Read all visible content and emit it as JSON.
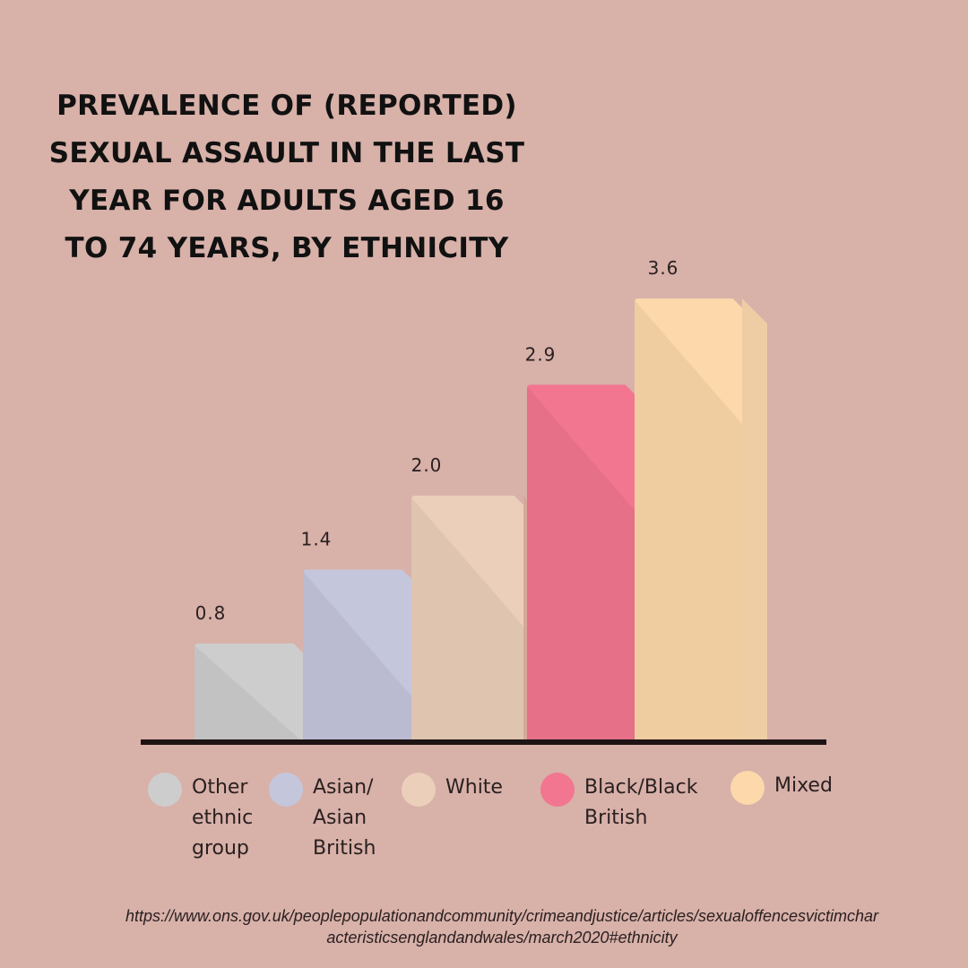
{
  "title_lines": [
    "PREVALENCE OF (REPORTED)",
    "SEXUAL ASSAULT IN THE LAST",
    "YEAR FOR ADULTS AGED 16",
    "TO 74 YEARS, BY ETHNICITY"
  ],
  "chart_data": {
    "type": "bar",
    "title": "PREVALENCE OF (REPORTED) SEXUAL ASSAULT IN THE LAST YEAR FOR ADULTS AGED 16 TO 74 YEARS, BY ETHNICITY",
    "categories": [
      "Other ethnic group",
      "Asian/ Asian British",
      "White",
      "Black/Black British",
      "Mixed"
    ],
    "values": [
      0.8,
      1.4,
      2.0,
      2.9,
      3.6
    ],
    "value_labels": [
      "0.8",
      "1.4",
      "2.0",
      "2.9",
      "3.6"
    ],
    "colors": [
      "#cdcdcd",
      "#c4c6dc",
      "#ebcfba",
      "#f27690",
      "#fcd8aa"
    ],
    "side_colors": [
      "#b3b3b3",
      "#a9acce",
      "#d6a89c",
      "#d96585",
      "#eecda5"
    ],
    "ylim": [
      0,
      3.6
    ],
    "grid": false,
    "legend_position": "bottom"
  },
  "legend": [
    {
      "label_lines": [
        "Other",
        "ethnic",
        "group"
      ],
      "color": "#cdcdcd"
    },
    {
      "label_lines": [
        "Asian/",
        "Asian",
        "British"
      ],
      "color": "#c4c6dc"
    },
    {
      "label_lines": [
        "White"
      ],
      "color": "#ebcfba"
    },
    {
      "label_lines": [
        "Black/Black",
        "British"
      ],
      "color": "#f27690"
    },
    {
      "label_lines": [
        "Mixed"
      ],
      "color": "#fcd8aa"
    }
  ],
  "source_lines": [
    "https://www.ons.gov.uk/peoplepopulationandcommunity/crimeandjustice/articles/sexualoffencesvictimchar",
    "acteristicsenglandandwales/march2020#ethnicity"
  ]
}
